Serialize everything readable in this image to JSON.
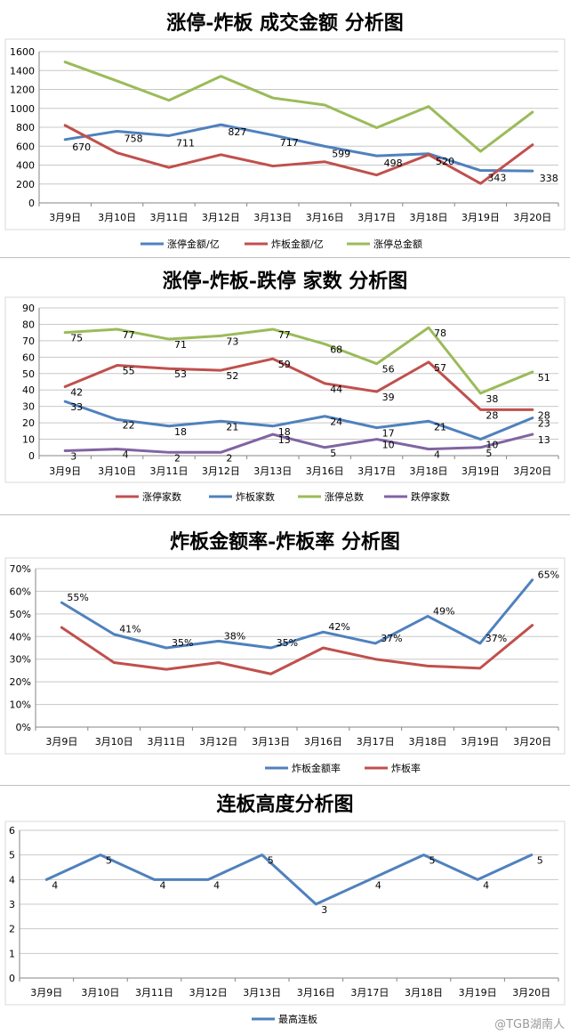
{
  "watermark": "@TGB湖南人",
  "chart_data": [
    {
      "type": "line",
      "title": "涨停-炸板 成交金额 分析图",
      "categories": [
        "3月9日",
        "3月10日",
        "3月11日",
        "3月12日",
        "3月13日",
        "3月16日",
        "3月17日",
        "3月18日",
        "3月19日",
        "3月20日"
      ],
      "ylim": [
        0,
        1600
      ],
      "yticks": [
        "0",
        "200",
        "400",
        "600",
        "800",
        "1000",
        "1200",
        "1400",
        "1600"
      ],
      "grid": true,
      "legend": "bottom",
      "series": [
        {
          "name": "涨停金额/亿",
          "color": "#4F81BD",
          "values": [
            670,
            758,
            711,
            827,
            717,
            599,
            498,
            520,
            343,
            338
          ],
          "labels": [
            "670",
            "758",
            "711",
            "827",
            "717",
            "599",
            "498",
            "520",
            "343",
            "338"
          ]
        },
        {
          "name": "炸板金额/亿",
          "color": "#C0504D",
          "values": [
            820,
            530,
            375,
            510,
            390,
            435,
            295,
            510,
            205,
            615
          ]
        },
        {
          "name": "涨停总金额",
          "color": "#9BBB59",
          "values": [
            1490,
            1290,
            1085,
            1340,
            1110,
            1035,
            795,
            1020,
            545,
            960
          ]
        }
      ]
    },
    {
      "type": "line",
      "title": "涨停-炸板-跌停 家数 分析图",
      "categories": [
        "3月9日",
        "3月10日",
        "3月11日",
        "3月12日",
        "3月13日",
        "3月16日",
        "3月17日",
        "3月18日",
        "3月19日",
        "3月20日"
      ],
      "ylim": [
        0,
        90
      ],
      "yticks": [
        "0",
        "10",
        "20",
        "30",
        "40",
        "50",
        "60",
        "70",
        "80",
        "90"
      ],
      "grid": true,
      "legend": "bottom",
      "series": [
        {
          "name": "涨停家数",
          "color": "#C0504D",
          "values": [
            42,
            55,
            53,
            52,
            59,
            44,
            39,
            57,
            28,
            28
          ],
          "labels": [
            "42",
            "55",
            "53",
            "52",
            "59",
            "44",
            "39",
            "57",
            "28",
            "28"
          ]
        },
        {
          "name": "炸板家数",
          "color": "#4F81BD",
          "values": [
            33,
            22,
            18,
            21,
            18,
            24,
            17,
            21,
            10,
            23
          ],
          "labels": [
            "33",
            "22",
            "18",
            "21",
            "18",
            "24",
            "17",
            "21",
            "10",
            "23"
          ]
        },
        {
          "name": "涨停总数",
          "color": "#9BBB59",
          "values": [
            75,
            77,
            71,
            73,
            77,
            68,
            56,
            78,
            38,
            51
          ],
          "labels": [
            "75",
            "77",
            "71",
            "73",
            "77",
            "68",
            "56",
            "78",
            "38",
            "51"
          ]
        },
        {
          "name": "跌停家数",
          "color": "#8064A2",
          "values": [
            3,
            4,
            2,
            2,
            13,
            5,
            10,
            4,
            5,
            13
          ],
          "labels": [
            "3",
            "4",
            "2",
            "2",
            "13",
            "5",
            "10",
            "4",
            "5",
            "13"
          ]
        }
      ]
    },
    {
      "type": "line",
      "title": "炸板金额率-炸板率 分析图",
      "categories": [
        "3月9日",
        "3月10日",
        "3月11日",
        "3月12日",
        "3月13日",
        "3月16日",
        "3月17日",
        "3月18日",
        "3月19日",
        "3月20日"
      ],
      "ylim": [
        0,
        70
      ],
      "yticks": [
        "0%",
        "10%",
        "20%",
        "30%",
        "40%",
        "50%",
        "60%",
        "70%"
      ],
      "grid": true,
      "legend": "bottom",
      "series": [
        {
          "name": "炸板金额率",
          "color": "#4F81BD",
          "values": [
            55,
            41,
            35,
            38,
            35,
            42,
            37,
            49,
            37,
            65
          ],
          "labels": [
            "55%",
            "41%",
            "35%",
            "38%",
            "35%",
            "42%",
            "37%",
            "49%",
            "37%",
            "65%"
          ]
        },
        {
          "name": "炸板率",
          "color": "#C0504D",
          "values": [
            44,
            28.5,
            25.5,
            28.5,
            23.5,
            35,
            30,
            27,
            26,
            45
          ]
        }
      ]
    },
    {
      "type": "line",
      "title": "连板高度分析图",
      "categories": [
        "3月9日",
        "3月10日",
        "3月11日",
        "3月12日",
        "3月13日",
        "3月16日",
        "3月17日",
        "3月18日",
        "3月19日",
        "3月20日"
      ],
      "ylim": [
        0,
        6
      ],
      "yticks": [
        "0",
        "1",
        "2",
        "3",
        "4",
        "5",
        "6"
      ],
      "grid": true,
      "legend": "bottom",
      "series": [
        {
          "name": "最高连板",
          "color": "#4F81BD",
          "values": [
            4,
            5,
            4,
            4,
            5,
            3,
            4,
            5,
            4,
            5
          ],
          "labels": [
            "4",
            "5",
            "4",
            "4",
            "5",
            "3",
            "4",
            "5",
            "4",
            "5"
          ]
        }
      ]
    }
  ]
}
